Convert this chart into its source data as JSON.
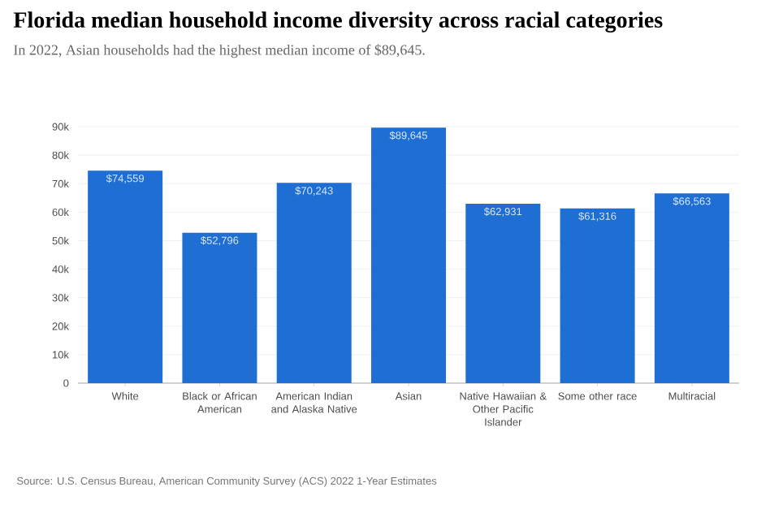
{
  "chart_data": {
    "type": "bar",
    "title": "Florida median household income diversity across racial categories",
    "subtitle": "In 2022, Asian households had the highest median income of $89,645.",
    "categories": [
      "White",
      "Black or African American",
      "American Indian and Alaska Native",
      "Asian",
      "Native Hawaiian & Other Pacific Islander",
      "Some other race",
      "Multiracial"
    ],
    "values": [
      74559,
      52796,
      70243,
      89645,
      62931,
      61316,
      66563
    ],
    "value_labels": [
      "$74,559",
      "$52,796",
      "$70,243",
      "$89,645",
      "$62,931",
      "$61,316",
      "$66,563"
    ],
    "color": "#1f6ed4",
    "ylim": [
      0,
      90000
    ],
    "yticks": [
      0,
      {
        "value": 10000,
        "label": "10k"
      },
      {
        "value": 20000,
        "label": "20k"
      },
      {
        "value": 30000,
        "label": "30k"
      },
      {
        "value": 40000,
        "label": "40k"
      },
      {
        "value": 50000,
        "label": "50k"
      },
      {
        "value": 60000,
        "label": "60k"
      },
      {
        "value": 70000,
        "label": "70k"
      },
      {
        "value": 80000,
        "label": "80k"
      },
      {
        "value": 90000,
        "label": "90k"
      }
    ],
    "grid": "y",
    "annotations": [
      "Source: U.S. Census Bureau, American Community Survey (ACS) 2022 1-Year Estimates"
    ]
  }
}
